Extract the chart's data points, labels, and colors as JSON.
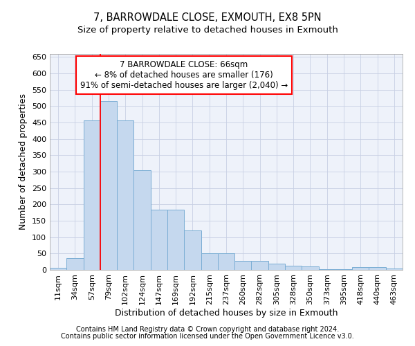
{
  "title1": "7, BARROWDALE CLOSE, EXMOUTH, EX8 5PN",
  "title2": "Size of property relative to detached houses in Exmouth",
  "xlabel": "Distribution of detached houses by size in Exmouth",
  "ylabel": "Number of detached properties",
  "bar_color": "#c5d8ee",
  "bar_edge_color": "#7aadd4",
  "background_color": "#eef2fa",
  "grid_color": "#c8d0e4",
  "categories": [
    "11sqm",
    "34sqm",
    "57sqm",
    "79sqm",
    "102sqm",
    "124sqm",
    "147sqm",
    "169sqm",
    "192sqm",
    "215sqm",
    "237sqm",
    "260sqm",
    "282sqm",
    "305sqm",
    "328sqm",
    "350sqm",
    "373sqm",
    "395sqm",
    "418sqm",
    "440sqm",
    "463sqm"
  ],
  "values": [
    7,
    35,
    457,
    515,
    457,
    305,
    183,
    183,
    120,
    50,
    50,
    28,
    28,
    18,
    12,
    10,
    3,
    3,
    8,
    8,
    4
  ],
  "ylim": [
    0,
    660
  ],
  "yticks": [
    0,
    50,
    100,
    150,
    200,
    250,
    300,
    350,
    400,
    450,
    500,
    550,
    600,
    650
  ],
  "annotation_line1": "7 BARROWDALE CLOSE: 66sqm",
  "annotation_line2": "← 8% of detached houses are smaller (176)",
  "annotation_line3": "91% of semi-detached houses are larger (2,040) →",
  "footer1": "Contains HM Land Registry data © Crown copyright and database right 2024.",
  "footer2": "Contains public sector information licensed under the Open Government Licence v3.0.",
  "title1_fontsize": 10.5,
  "title2_fontsize": 9.5,
  "axis_label_fontsize": 9,
  "tick_fontsize": 8,
  "annotation_fontsize": 8.5,
  "footer_fontsize": 7
}
